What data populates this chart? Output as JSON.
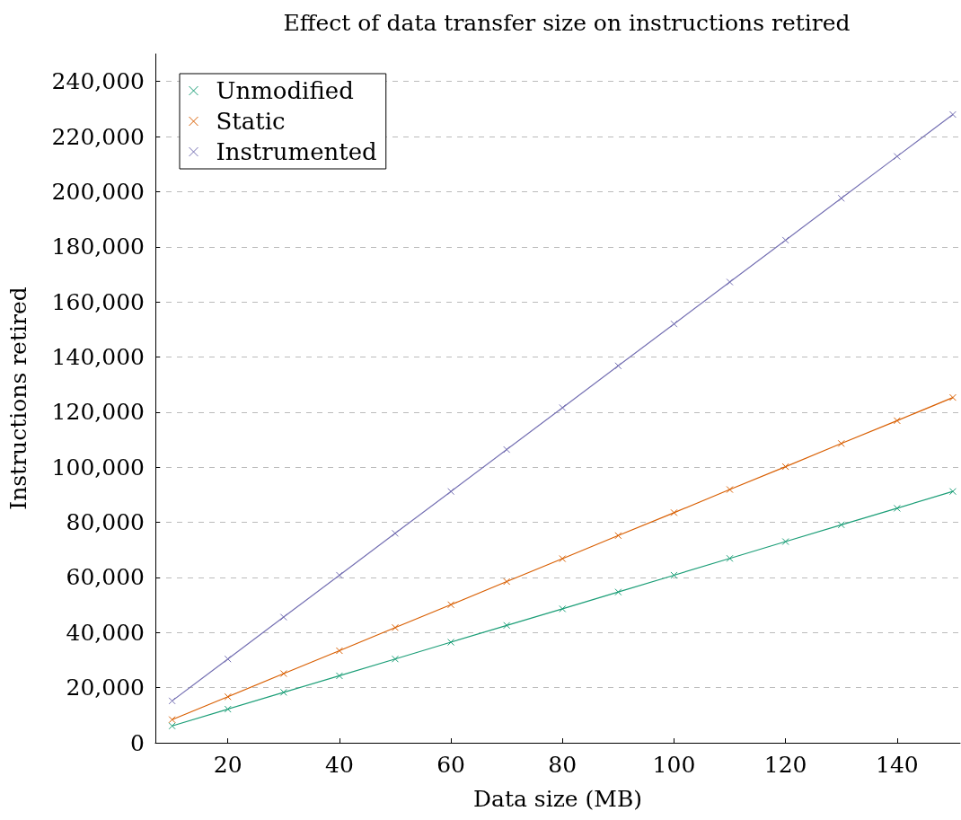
{
  "chart_data": {
    "type": "line",
    "title": "Effect of data transfer size on instructions retired",
    "xlabel": "Data size (MB)",
    "ylabel": "Instructions retired",
    "x": [
      10,
      20,
      30,
      40,
      50,
      60,
      70,
      80,
      90,
      100,
      110,
      120,
      130,
      140,
      150
    ],
    "series": [
      {
        "name": "Unmodified",
        "color": "#1b9e77",
        "values": [
          6100,
          12200,
          18300,
          24300,
          30400,
          36500,
          42600,
          48600,
          54700,
          60800,
          66900,
          73000,
          79100,
          85100,
          91200
        ]
      },
      {
        "name": "Static",
        "color": "#d95f02",
        "values": [
          8400,
          16700,
          25100,
          33400,
          41800,
          50100,
          58500,
          66800,
          75200,
          83500,
          91900,
          100200,
          108600,
          116900,
          125300
        ]
      },
      {
        "name": "Instrumented",
        "color": "#7570b3",
        "values": [
          15200,
          30400,
          45600,
          60800,
          76000,
          91200,
          106400,
          121600,
          136800,
          152000,
          167200,
          182400,
          197600,
          212800,
          228000
        ]
      }
    ],
    "xlim": [
      7,
      151.3
    ],
    "xticks": [
      20,
      40,
      60,
      80,
      100,
      120,
      140
    ],
    "ylim": [
      0,
      250000
    ],
    "yticks": [
      0,
      {
        "value": 20000,
        "label": "20,000"
      },
      {
        "value": 40000,
        "label": "40,000"
      },
      {
        "value": 60000,
        "label": "60,000"
      },
      {
        "value": 80000,
        "label": "80,000"
      },
      {
        "value": 100000,
        "label": "100,000"
      },
      {
        "value": 120000,
        "label": "120,000"
      },
      {
        "value": 140000,
        "label": "140,000"
      },
      {
        "value": 160000,
        "label": "160,000"
      },
      {
        "value": 180000,
        "label": "180,000"
      },
      {
        "value": 200000,
        "label": "200,000"
      },
      {
        "value": 220000,
        "label": "220,000"
      },
      {
        "value": 240000,
        "label": "240,000"
      }
    ],
    "grid": "y",
    "legend": "top left",
    "marker": "cross",
    "line_style": "solid"
  }
}
